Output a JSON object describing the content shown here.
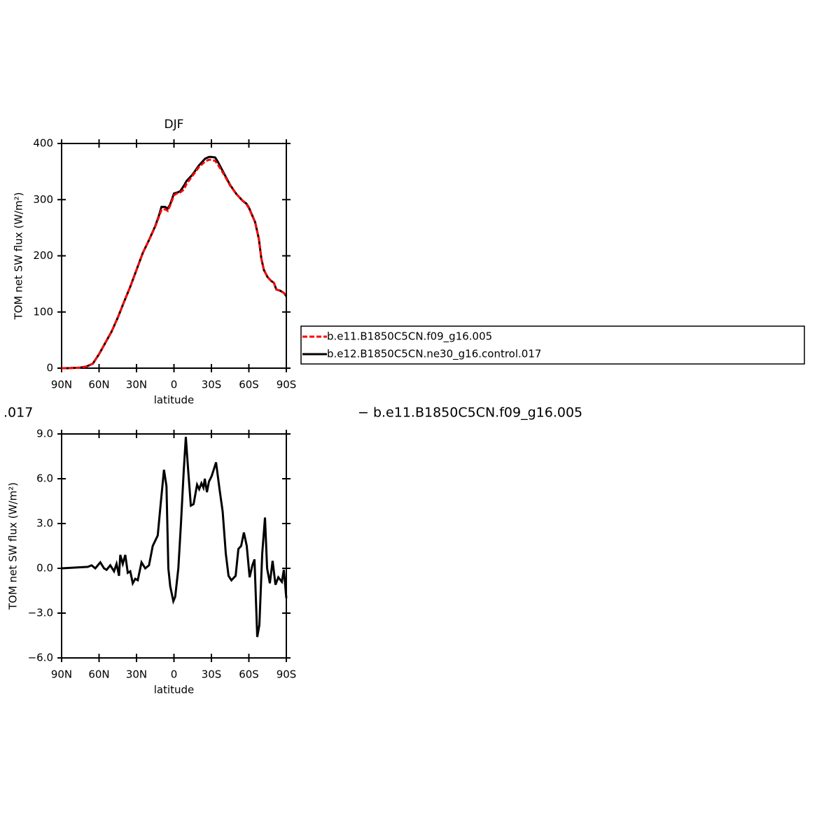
{
  "chart_data": [
    {
      "type": "line",
      "title": "DJF",
      "xlabel": "latitude",
      "ylabel": "TOM net SW flux (W/m²)",
      "x": [
        90,
        85,
        80,
        75,
        70,
        65,
        60,
        55,
        50,
        45,
        40,
        35,
        30,
        25,
        20,
        15,
        12,
        10,
        7,
        5,
        3,
        0,
        -3,
        -5,
        -8,
        -10,
        -15,
        -20,
        -25,
        -28,
        -30,
        -33,
        -35,
        -40,
        -45,
        -50,
        -55,
        -58,
        -60,
        -65,
        -68,
        -70,
        -72,
        -75,
        -78,
        -80,
        -82,
        -85,
        -88,
        -90
      ],
      "series": [
        {
          "name": "b.e11.B1850C5CN.f09_g16.005",
          "color": "#ff0000",
          "dashed": true,
          "values": [
            0,
            0,
            0.5,
            1,
            3,
            8,
            25,
            45,
            65,
            90,
            118,
            145,
            175,
            205,
            228,
            252,
            270,
            282,
            283,
            280,
            290,
            308,
            312,
            313,
            318,
            328,
            343,
            358,
            368,
            371,
            371,
            369,
            363,
            345,
            325,
            310,
            298,
            292,
            285,
            260,
            230,
            195,
            175,
            162,
            155,
            152,
            140,
            138,
            134,
            128
          ]
        },
        {
          "name": "b.e12.B1850C5CN.ne30_g16.control.017",
          "color": "#000000",
          "dashed": false,
          "values": [
            0,
            0,
            0.5,
            1,
            3,
            8,
            25,
            45,
            65,
            90,
            118,
            145,
            175,
            205,
            228,
            253,
            272,
            287,
            287,
            284,
            292,
            311,
            313,
            315,
            325,
            333,
            345,
            361,
            373,
            376,
            376,
            375,
            368,
            347,
            326,
            310,
            298,
            293,
            286,
            260,
            230,
            195,
            175,
            162,
            155,
            152,
            140,
            138,
            134,
            128
          ]
        }
      ],
      "xlim": [
        90,
        -90
      ],
      "xticks": [
        {
          "value": 90,
          "label": "90N"
        },
        {
          "value": 60,
          "label": "60N"
        },
        {
          "value": 30,
          "label": "30N"
        },
        0,
        {
          "value": -30,
          "label": "30S"
        },
        {
          "value": -60,
          "label": "60S"
        },
        {
          "value": -90,
          "label": "90S"
        }
      ],
      "ylim": [
        0,
        400
      ],
      "yticks": [
        0,
        100,
        200,
        300,
        400
      ],
      "legend": "right"
    },
    {
      "type": "line",
      "xlabel": "latitude",
      "ylabel": "TOM net SW flux (W/m²)",
      "x": [
        90,
        69,
        66,
        63,
        59,
        56,
        54,
        51,
        48,
        46,
        44,
        43,
        41,
        39,
        37,
        35,
        33,
        31,
        29,
        26,
        23,
        20,
        17,
        13,
        11,
        8,
        6,
        4.5,
        3,
        0.5,
        -1,
        -3.5,
        -5.6,
        -7.8,
        -9.5,
        -11,
        -13.5,
        -15.7,
        -18.5,
        -20.2,
        -22,
        -23.6,
        -24.7,
        -26.4,
        -28,
        -30.3,
        -33.7,
        -36.5,
        -39,
        -41.5,
        -43.7,
        -46,
        -49.4,
        -51.6,
        -53.8,
        -56,
        -58.3,
        -60.6,
        -62.8,
        -64.5,
        -66.7,
        -68.4,
        -70.7,
        -72.9,
        -74.6,
        -76.8,
        -79,
        -81.3,
        -83.6,
        -86.4,
        -88,
        -90
      ],
      "series": [
        {
          "color": "#000000",
          "values": [
            0,
            0.1,
            0.2,
            0,
            0.4,
            0,
            -0.1,
            0.2,
            -0.2,
            0.3,
            -0.5,
            0.9,
            0.3,
            0.9,
            -0.3,
            -0.2,
            -1.0,
            -0.7,
            -0.8,
            0.4,
            0,
            0.2,
            1.5,
            2.2,
            4,
            6.6,
            5.5,
            0,
            -1.2,
            -2.2,
            -1.9,
            0,
            3,
            6.5,
            8.8,
            7,
            4.2,
            4.3,
            5.6,
            5.3,
            5.7,
            5.4,
            6,
            5.1,
            5.8,
            6.2,
            7.1,
            5.3,
            3.8,
            1,
            -0.5,
            -0.8,
            -0.5,
            1.3,
            1.5,
            2.4,
            1.5,
            -0.6,
            0.2,
            0.6,
            -4.6,
            -3.8,
            1,
            3.4,
            0,
            -1,
            0.5,
            -1.1,
            -0.6,
            -0.9,
            -0.1,
            -2
          ]
        }
      ],
      "xlim": [
        90,
        -90
      ],
      "xticks": [
        {
          "value": 90,
          "label": "90N"
        },
        {
          "value": 60,
          "label": "60N"
        },
        {
          "value": 30,
          "label": "30N"
        },
        0,
        {
          "value": -30,
          "label": "30S"
        },
        {
          "value": -60,
          "label": "60S"
        },
        {
          "value": -90,
          "label": "90S"
        }
      ],
      "ylim": [
        -6,
        9
      ],
      "yticks": [
        {
          "value": 9,
          "label": "9.0"
        },
        {
          "value": 6,
          "label": "6.0"
        },
        {
          "value": 3,
          "label": "3.0"
        },
        {
          "value": 0,
          "label": "0.0"
        },
        {
          "value": -3,
          "label": "−3.0"
        },
        {
          "value": -6,
          "label": "−6.0"
        }
      ],
      "annotations": [
        ".017",
        "− b.e11.B1850C5CN.f09_g16.005"
      ]
    }
  ]
}
